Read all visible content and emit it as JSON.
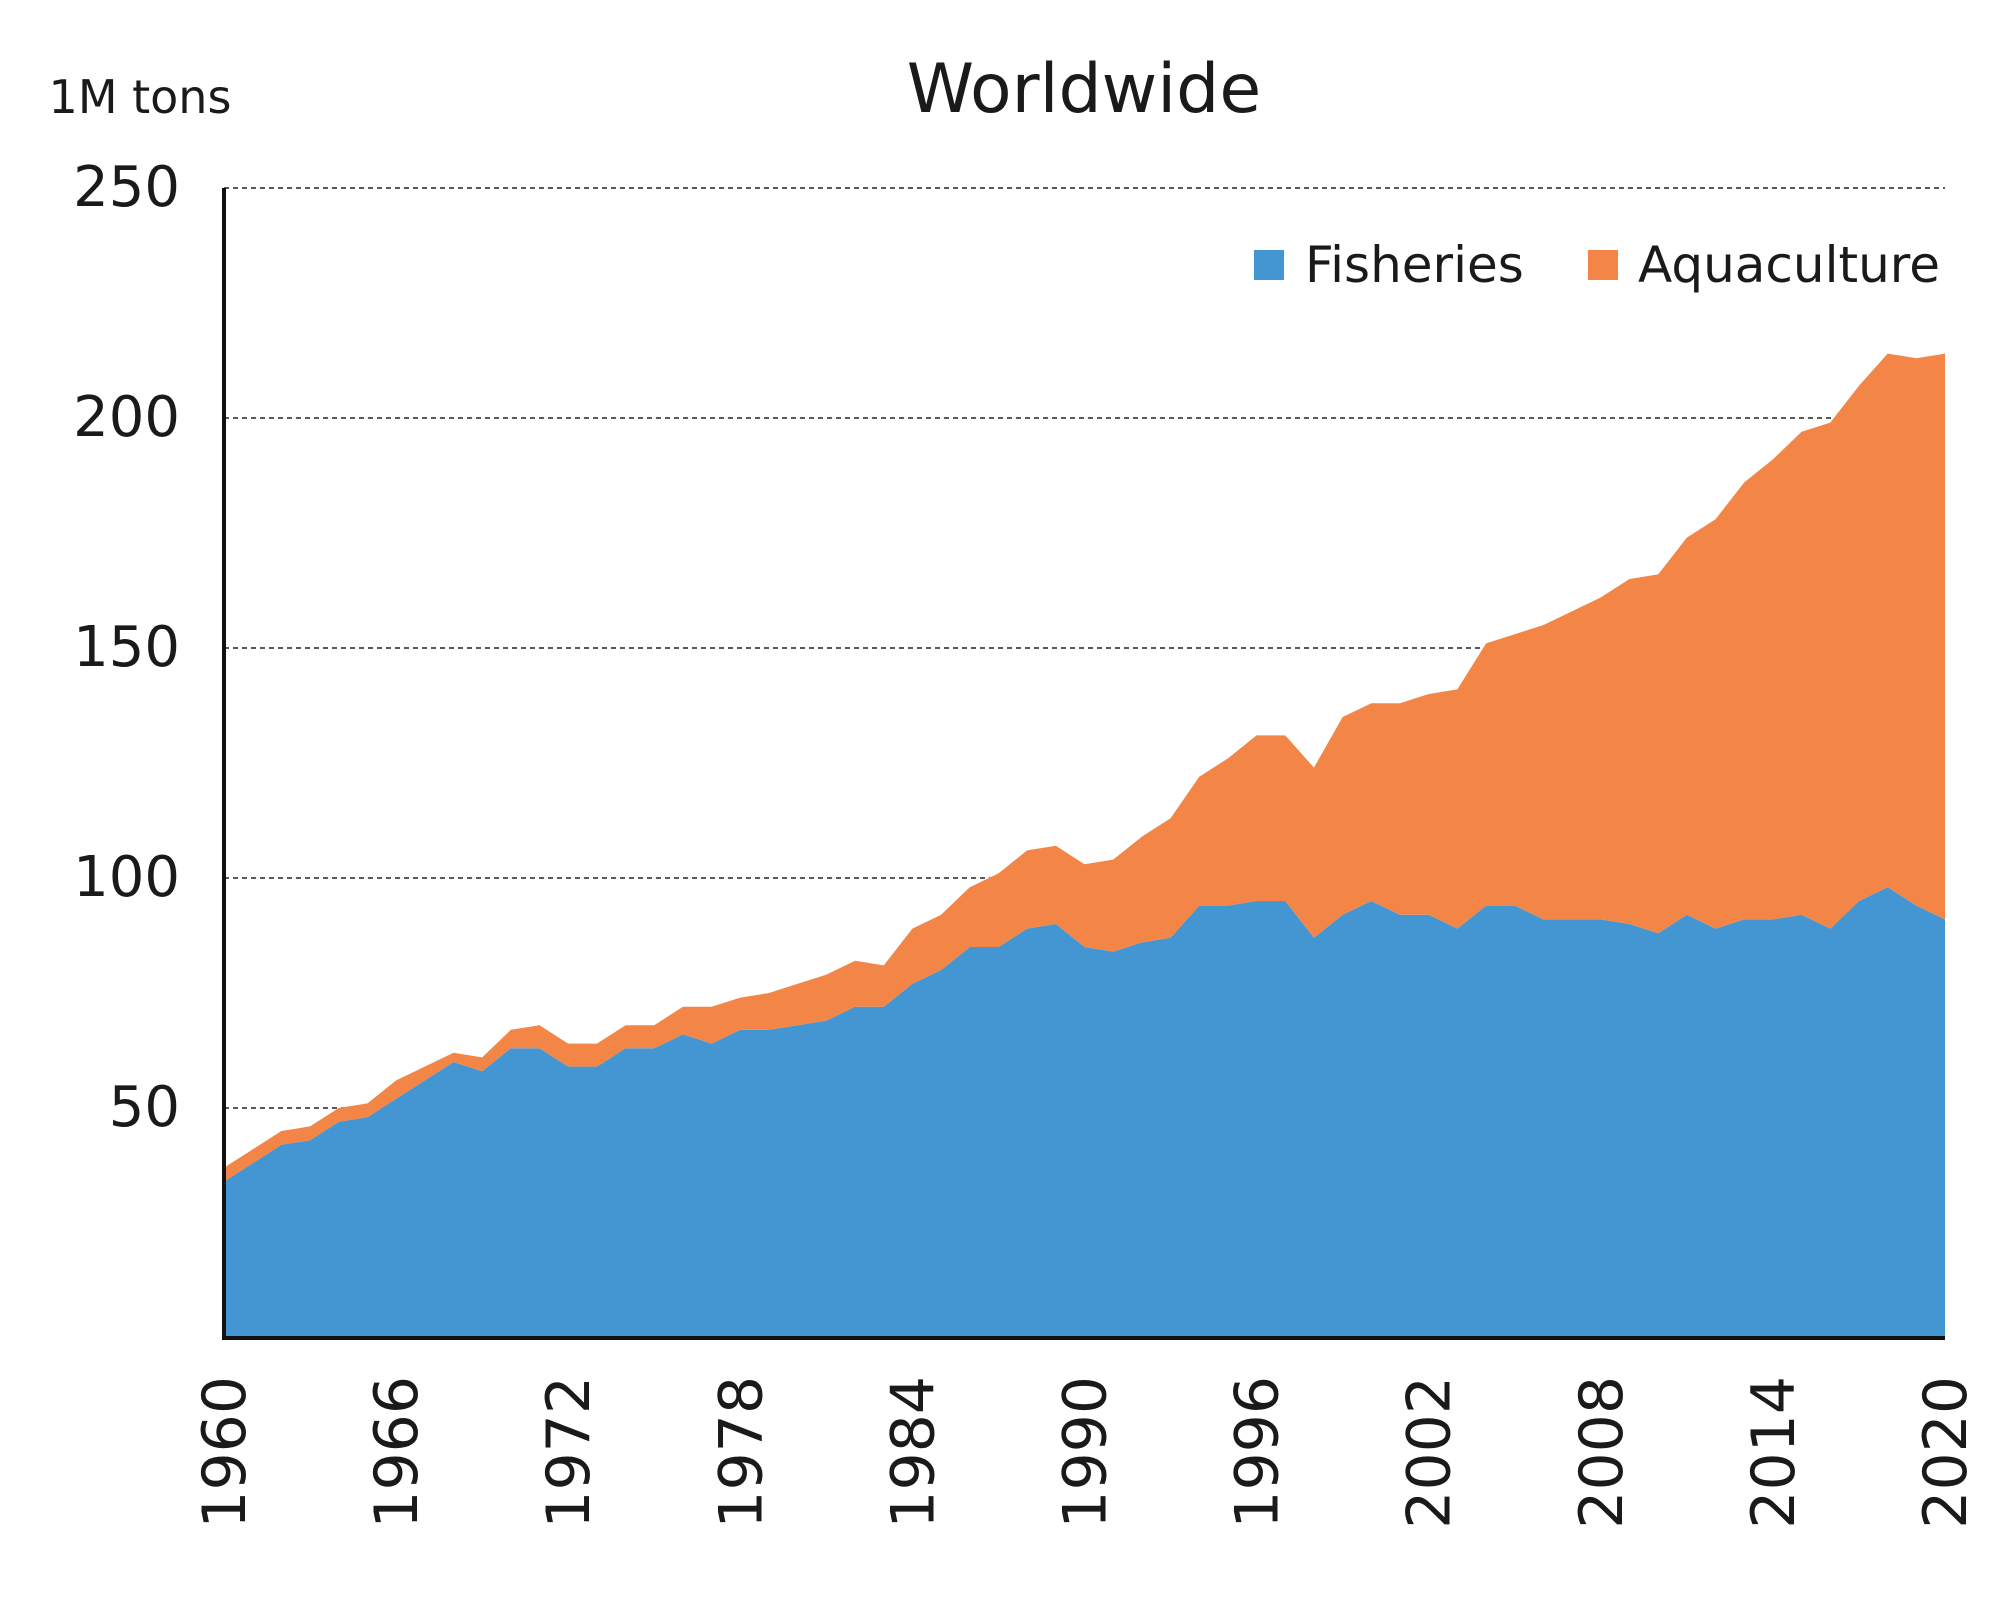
{
  "chart_data": {
    "type": "area",
    "stacked": true,
    "title": "Worldwide",
    "ylabel": "1M tons",
    "xlabel": "",
    "xlim": [
      1960,
      2020
    ],
    "ylim": [
      0,
      250
    ],
    "y_ticks": [
      50,
      100,
      150,
      200,
      250
    ],
    "x_ticks": [
      1960,
      1966,
      1972,
      1978,
      1984,
      1990,
      1996,
      2002,
      2008,
      2014,
      2020
    ],
    "grid": "horizontal dashed",
    "legend_position": "top-right",
    "x": [
      1960,
      1961,
      1962,
      1963,
      1964,
      1965,
      1966,
      1967,
      1968,
      1969,
      1970,
      1971,
      1972,
      1973,
      1974,
      1975,
      1976,
      1977,
      1978,
      1979,
      1980,
      1981,
      1982,
      1983,
      1984,
      1985,
      1986,
      1987,
      1988,
      1989,
      1990,
      1991,
      1992,
      1993,
      1994,
      1995,
      1996,
      1997,
      1998,
      1999,
      2000,
      2001,
      2002,
      2003,
      2004,
      2005,
      2006,
      2007,
      2008,
      2009,
      2010,
      2011,
      2012,
      2013,
      2014,
      2015,
      2016,
      2017,
      2018,
      2019,
      2020
    ],
    "series": [
      {
        "name": "Fisheries",
        "color": "#4396d2",
        "values": [
          34,
          38,
          42,
          43,
          47,
          48,
          52,
          56,
          60,
          58,
          63,
          63,
          59,
          59,
          63,
          63,
          66,
          64,
          67,
          67,
          68,
          69,
          72,
          72,
          77,
          80,
          85,
          85,
          89,
          90,
          85,
          84,
          86,
          87,
          94,
          94,
          95,
          95,
          87,
          92,
          95,
          92,
          92,
          89,
          94,
          94,
          91,
          91,
          91,
          90,
          88,
          92,
          89,
          91,
          91,
          92,
          89,
          95,
          98,
          94,
          91
        ]
      },
      {
        "name": "Aquaculture",
        "color": "#f38646",
        "values": [
          3,
          3,
          3,
          3,
          3,
          3,
          4,
          3,
          2,
          3,
          4,
          5,
          5,
          5,
          5,
          5,
          6,
          8,
          7,
          8,
          9,
          10,
          10,
          9,
          12,
          12,
          13,
          16,
          17,
          17,
          18,
          20,
          23,
          26,
          28,
          32,
          36,
          36,
          37,
          43,
          43,
          46,
          48,
          52,
          57,
          59,
          64,
          67,
          70,
          75,
          78,
          82,
          89,
          95,
          100,
          105,
          110,
          112,
          116,
          119,
          123
        ]
      }
    ]
  }
}
